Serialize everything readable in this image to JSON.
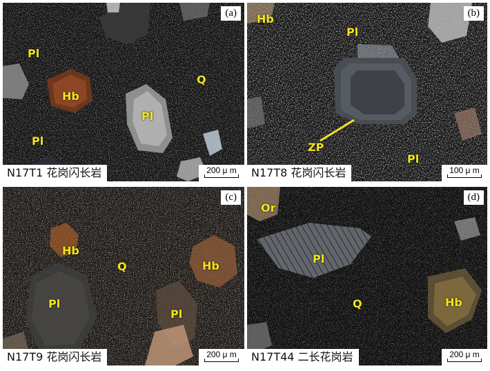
{
  "panels": [
    {
      "id": "a",
      "letter": "(a)",
      "caption": "N17T1 花岗闪长岩",
      "scale": "200 μ m",
      "labels": [
        {
          "text": "Pl",
          "name": "label-pl-1"
        },
        {
          "text": "Hb",
          "name": "label-hb"
        },
        {
          "text": "Q",
          "name": "label-q"
        },
        {
          "text": "Pl",
          "name": "label-pl-2"
        },
        {
          "text": "Pl",
          "name": "label-pl-3"
        }
      ]
    },
    {
      "id": "b",
      "letter": "(b)",
      "caption": "N17T8 花岗闪长岩",
      "scale": "100 μ m",
      "labels": [
        {
          "text": "Hb",
          "name": "label-hb"
        },
        {
          "text": "Pl",
          "name": "label-pl-1"
        },
        {
          "text": "ZP",
          "name": "label-zp"
        },
        {
          "text": "Pl",
          "name": "label-pl-2"
        }
      ]
    },
    {
      "id": "c",
      "letter": "(c)",
      "caption": "N17T9 花岗闪长岩",
      "scale": "200 μ m",
      "labels": [
        {
          "text": "Hb",
          "name": "label-hb-1"
        },
        {
          "text": "Q",
          "name": "label-q"
        },
        {
          "text": "Hb",
          "name": "label-hb-2"
        },
        {
          "text": "Pl",
          "name": "label-pl-1"
        },
        {
          "text": "Pl",
          "name": "label-pl-2"
        }
      ]
    },
    {
      "id": "d",
      "letter": "(d)",
      "caption": "N17T44 二长花岗岩",
      "scale": "200 μ m",
      "labels": [
        {
          "text": "Or",
          "name": "label-or"
        },
        {
          "text": "Pl",
          "name": "label-pl"
        },
        {
          "text": "Q",
          "name": "label-q"
        },
        {
          "text": "Hb",
          "name": "label-hb"
        }
      ]
    }
  ],
  "colors": {
    "label": "#f2e41a",
    "groundmass": "#0d0d0d"
  }
}
